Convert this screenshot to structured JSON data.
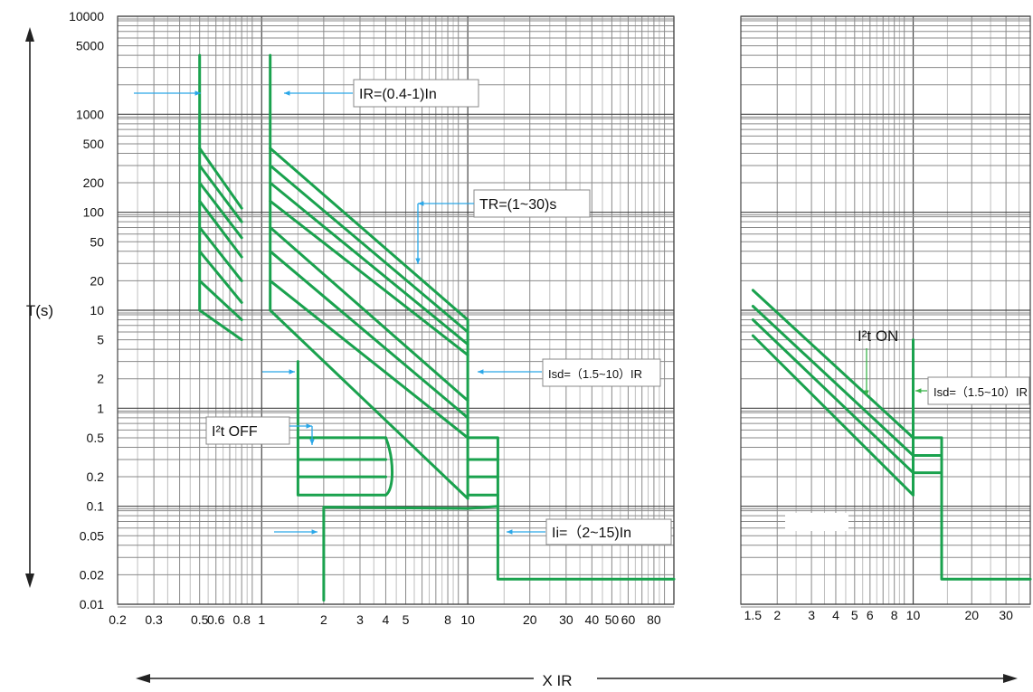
{
  "chart_data": [
    {
      "type": "line",
      "title": "",
      "xlabel": "X IR",
      "ylabel": "T(s)",
      "x_scale": "log",
      "y_scale": "log",
      "xlim": [
        0.2,
        100
      ],
      "ylim": [
        0.01,
        10000
      ],
      "grid": true,
      "x_ticks": [
        "0.2",
        "0.3",
        "0.5",
        "0.6",
        "0.8",
        "1",
        "2",
        "3",
        "4",
        "5",
        "8",
        "10",
        "20",
        "30",
        "40",
        "50",
        "60",
        "80"
      ],
      "x_tick_values": [
        0.2,
        0.3,
        0.5,
        0.6,
        0.8,
        1,
        2,
        3,
        4,
        5,
        8,
        10,
        20,
        30,
        40,
        50,
        60,
        80
      ],
      "y_ticks": [
        "10000",
        "5000",
        "1000",
        "500",
        "200",
        "100",
        "50",
        "20",
        "10",
        "5",
        "2",
        "1",
        "0.5",
        "0.2",
        "0.1",
        "0.05",
        "0.02",
        "0.01"
      ],
      "y_tick_values": [
        10000,
        5000,
        1000,
        500,
        200,
        100,
        50,
        20,
        10,
        5,
        2,
        1,
        0.5,
        0.2,
        0.1,
        0.05,
        0.02,
        0.01
      ],
      "annotations": [
        {
          "name": "ir-range",
          "text": "IR=(0.4-1)In"
        },
        {
          "name": "tr-range",
          "text": "TR=(1~30)s"
        },
        {
          "name": "isd-range",
          "text": "Isd=（1.5~10）IR"
        },
        {
          "name": "i2t-off",
          "text": "I²t OFF"
        },
        {
          "name": "ii-range",
          "text": "Ii=（2~15)In"
        }
      ],
      "series": [
        {
          "values": [
            [
              0.5,
              4000
            ],
            [
              0.5,
              10
            ],
            [
              0.8,
              5
            ]
          ]
        },
        {
          "values": [
            [
              1.1,
              4000
            ],
            [
              1.1,
              10
            ],
            [
              10,
              0.12
            ]
          ]
        },
        {
          "values": [
            [
              1.5,
              3
            ],
            [
              1.5,
              0.13
            ],
            [
              4.0,
              0.13
            ]
          ]
        },
        {
          "values": [
            [
              2.0,
              0.011
            ],
            [
              2.0,
              0.098
            ],
            [
              10,
              0.095
            ],
            [
              14,
              0.1
            ]
          ]
        },
        {
          "values": [
            [
              10,
              0.5
            ],
            [
              14,
              0.5
            ],
            [
              14,
              0.018
            ],
            [
              100,
              0.018
            ]
          ]
        }
      ]
    },
    {
      "type": "line",
      "title": "",
      "xlabel": "",
      "ylabel": "",
      "x_scale": "log",
      "y_scale": "log",
      "xlim": [
        1.3,
        40
      ],
      "ylim": [
        0.01,
        10000
      ],
      "grid": true,
      "x_ticks": [
        "1.5",
        "2",
        "3",
        "4",
        "5",
        "6",
        "8",
        "10",
        "20",
        "30"
      ],
      "x_tick_values": [
        1.5,
        2,
        3,
        4,
        5,
        6,
        8,
        10,
        20,
        30
      ],
      "annotations": [
        {
          "name": "i2t-on",
          "text": "I²t  ON"
        },
        {
          "name": "isd-range-right",
          "text": "Isd=（1.5~10）IR"
        }
      ],
      "series": [
        {
          "values": [
            [
              1.5,
              16
            ],
            [
              10,
              0.5
            ]
          ]
        },
        {
          "values": [
            [
              1.5,
              11
            ],
            [
              10,
              0.33
            ]
          ]
        },
        {
          "values": [
            [
              1.5,
              8
            ],
            [
              10,
              0.22
            ]
          ]
        },
        {
          "values": [
            [
              1.5,
              5.5
            ],
            [
              10,
              0.13
            ]
          ]
        },
        {
          "values": [
            [
              10,
              0.5
            ],
            [
              14,
              0.5
            ],
            [
              14,
              0.018
            ],
            [
              40,
              0.018
            ]
          ]
        },
        {
          "values": [
            [
              10,
              5
            ],
            [
              10,
              0.13
            ]
          ]
        }
      ]
    }
  ]
}
